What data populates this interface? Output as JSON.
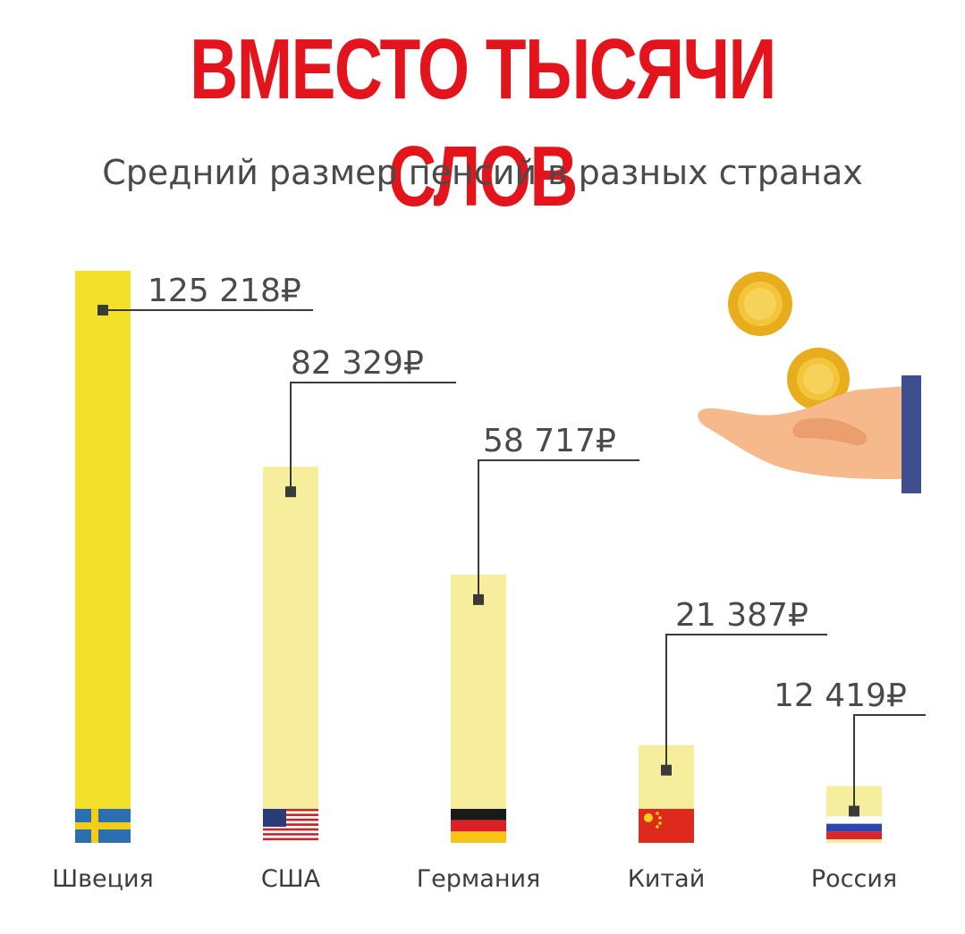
{
  "headline": "ВМЕСТО ТЫСЯЧИ СЛОВ",
  "colors": {
    "headline": "#e3141c",
    "bar_primary": "#f2e02a",
    "bar_light": "#f6ee9c",
    "leader_line": "#3a3a3a",
    "text": "#4a4a4a"
  },
  "chart_data": {
    "type": "bar",
    "title": "Средний размер пенсий в разных странах",
    "currency_symbol": "₽",
    "categories": [
      "Швеция",
      "США",
      "Германия",
      "Китай",
      "Россия"
    ],
    "values": [
      125218,
      82329,
      58717,
      21387,
      12419
    ],
    "value_labels": [
      "125 218₽",
      "82 329₽",
      "58 717₽",
      "21 387₽",
      "12 419₽"
    ],
    "flags": [
      "sweden-flag",
      "usa-flag",
      "germany-flag",
      "china-flag",
      "russia-flag"
    ],
    "grid": false,
    "legend": "none"
  },
  "illustration": {
    "icons": [
      "coin-icon",
      "coin-icon",
      "hand-icon"
    ]
  }
}
